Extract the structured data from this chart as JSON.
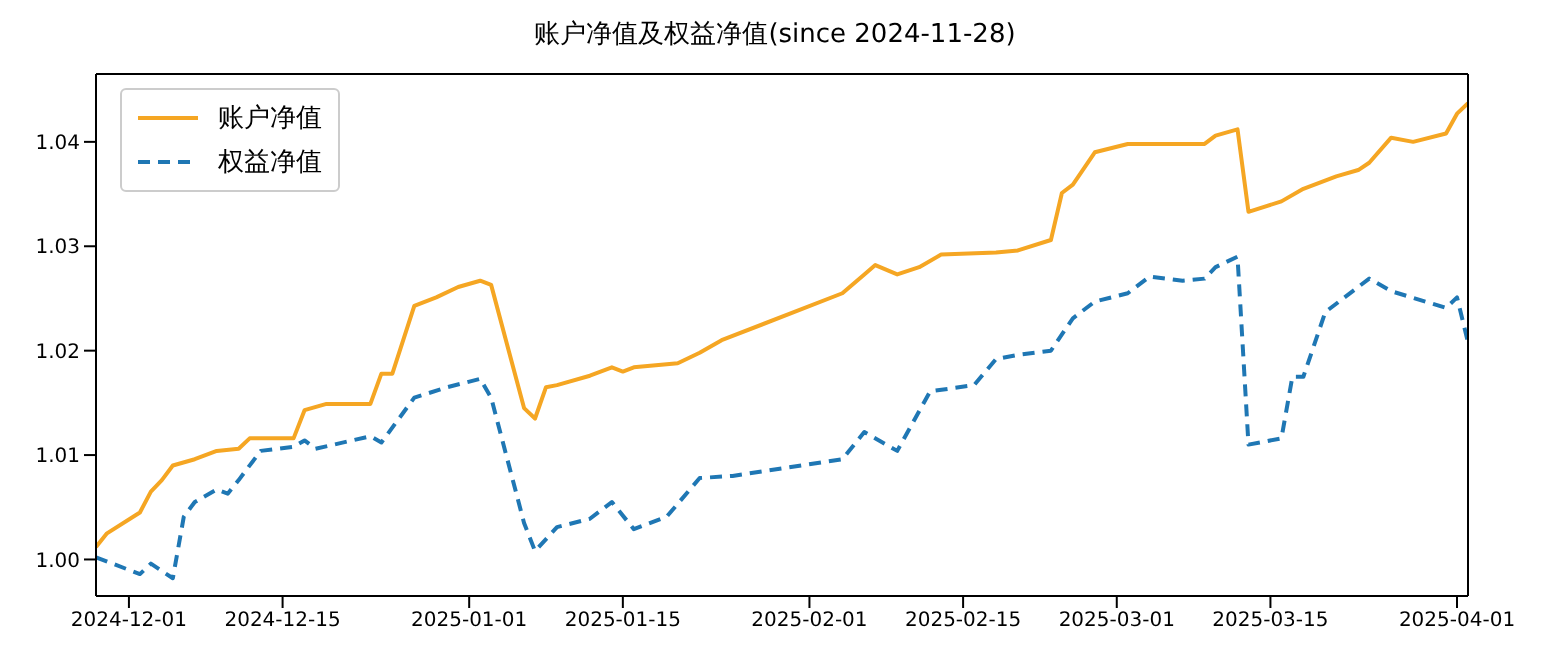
{
  "chart_data": {
    "type": "line",
    "title": "账户净值及权益净值(since 2024-11-28)",
    "xlim": [
      "2024-11-28",
      "2025-04-02"
    ],
    "xticks": [
      "2024-12-01",
      "2024-12-15",
      "2025-01-01",
      "2025-01-15",
      "2025-02-01",
      "2025-02-15",
      "2025-03-01",
      "2025-03-15",
      "2025-04-01"
    ],
    "ylim": [
      0.9965,
      1.0465
    ],
    "yticks": [
      {
        "value": 1.0,
        "label": "1.00"
      },
      {
        "value": 1.01,
        "label": "1.01"
      },
      {
        "value": 1.02,
        "label": "1.02"
      },
      {
        "value": 1.03,
        "label": "1.03"
      },
      {
        "value": 1.04,
        "label": "1.04"
      }
    ],
    "legend": "top left",
    "grid": false,
    "marker": "none",
    "series": [
      {
        "name": "账户净值",
        "color": "#f5a623",
        "line_style": "solid",
        "x": [
          "2024-11-28",
          "2024-11-29",
          "2024-12-02",
          "2024-12-03",
          "2024-12-04",
          "2024-12-05",
          "2024-12-07",
          "2024-12-09",
          "2024-12-11",
          "2024-12-12",
          "2024-12-16",
          "2024-12-17",
          "2024-12-19",
          "2024-12-23",
          "2024-12-24",
          "2024-12-25",
          "2024-12-27",
          "2024-12-29",
          "2024-12-31",
          "2025-01-02",
          "2025-01-03",
          "2025-01-06",
          "2025-01-07",
          "2025-01-08",
          "2025-01-09",
          "2025-01-12",
          "2025-01-14",
          "2025-01-15",
          "2025-01-16",
          "2025-01-20",
          "2025-01-22",
          "2025-01-24",
          "2025-02-04",
          "2025-02-06",
          "2025-02-07",
          "2025-02-09",
          "2025-02-11",
          "2025-02-13",
          "2025-02-18",
          "2025-02-20",
          "2025-02-23",
          "2025-02-24",
          "2025-02-25",
          "2025-02-27",
          "2025-03-02",
          "2025-03-05",
          "2025-03-09",
          "2025-03-10",
          "2025-03-12",
          "2025-03-13",
          "2025-03-16",
          "2025-03-18",
          "2025-03-21",
          "2025-03-23",
          "2025-03-24",
          "2025-03-26",
          "2025-03-28",
          "2025-03-31",
          "2025-04-01",
          "2025-04-02"
        ],
        "values": [
          1.0012,
          1.0025,
          1.0045,
          1.0065,
          1.0076,
          1.009,
          1.0096,
          1.0104,
          1.0106,
          1.0116,
          1.0116,
          1.0143,
          1.0149,
          1.0149,
          1.0178,
          1.0178,
          1.0243,
          1.0251,
          1.0261,
          1.0267,
          1.0263,
          1.0145,
          1.0135,
          1.0165,
          1.0167,
          1.0176,
          1.0184,
          1.018,
          1.0184,
          1.0188,
          1.0198,
          1.021,
          1.0255,
          1.0273,
          1.0282,
          1.0273,
          1.028,
          1.0292,
          1.0294,
          1.0296,
          1.0306,
          1.0351,
          1.0359,
          1.039,
          1.0398,
          1.0398,
          1.0398,
          1.0406,
          1.0412,
          1.0333,
          1.0343,
          1.0355,
          1.0367,
          1.0373,
          1.038,
          1.0404,
          1.04,
          1.0408,
          1.0427,
          1.0437
        ]
      },
      {
        "name": "权益净值",
        "color": "#1f77b4",
        "line_style": "dashed",
        "x": [
          "2024-11-28",
          "2024-12-02",
          "2024-12-03",
          "2024-12-05",
          "2024-12-06",
          "2024-12-07",
          "2024-12-09",
          "2024-12-10",
          "2024-12-11",
          "2024-12-13",
          "2024-12-16",
          "2024-12-17",
          "2024-12-18",
          "2024-12-23",
          "2024-12-24",
          "2024-12-27",
          "2024-12-30",
          "2025-01-02",
          "2025-01-03",
          "2025-01-06",
          "2025-01-07",
          "2025-01-09",
          "2025-01-12",
          "2025-01-14",
          "2025-01-16",
          "2025-01-19",
          "2025-01-22",
          "2025-01-25",
          "2025-02-04",
          "2025-02-06",
          "2025-02-09",
          "2025-02-12",
          "2025-02-16",
          "2025-02-18",
          "2025-02-20",
          "2025-02-23",
          "2025-02-25",
          "2025-02-27",
          "2025-03-02",
          "2025-03-04",
          "2025-03-07",
          "2025-03-09",
          "2025-03-10",
          "2025-03-12",
          "2025-03-13",
          "2025-03-16",
          "2025-03-17",
          "2025-03-18",
          "2025-03-20",
          "2025-03-24",
          "2025-03-26",
          "2025-03-31",
          "2025-04-01",
          "2025-04-02"
        ],
        "values": [
          1.0002,
          0.9986,
          0.9996,
          0.9982,
          1.0041,
          1.0055,
          1.0067,
          1.0063,
          1.0076,
          1.0104,
          1.0108,
          1.0114,
          1.0106,
          1.0118,
          1.0112,
          1.0155,
          1.0165,
          1.0173,
          1.0155,
          1.0035,
          1.0008,
          1.0031,
          1.0039,
          1.0055,
          1.0029,
          1.0041,
          1.0078,
          1.008,
          1.0096,
          1.0122,
          1.0104,
          1.0161,
          1.0167,
          1.0192,
          1.0196,
          1.02,
          1.0231,
          1.0247,
          1.0255,
          1.0271,
          1.0267,
          1.0269,
          1.028,
          1.029,
          1.011,
          1.0116,
          1.0175,
          1.0175,
          1.0237,
          1.0269,
          1.0257,
          1.0241,
          1.0251,
          1.0208
        ]
      }
    ]
  }
}
